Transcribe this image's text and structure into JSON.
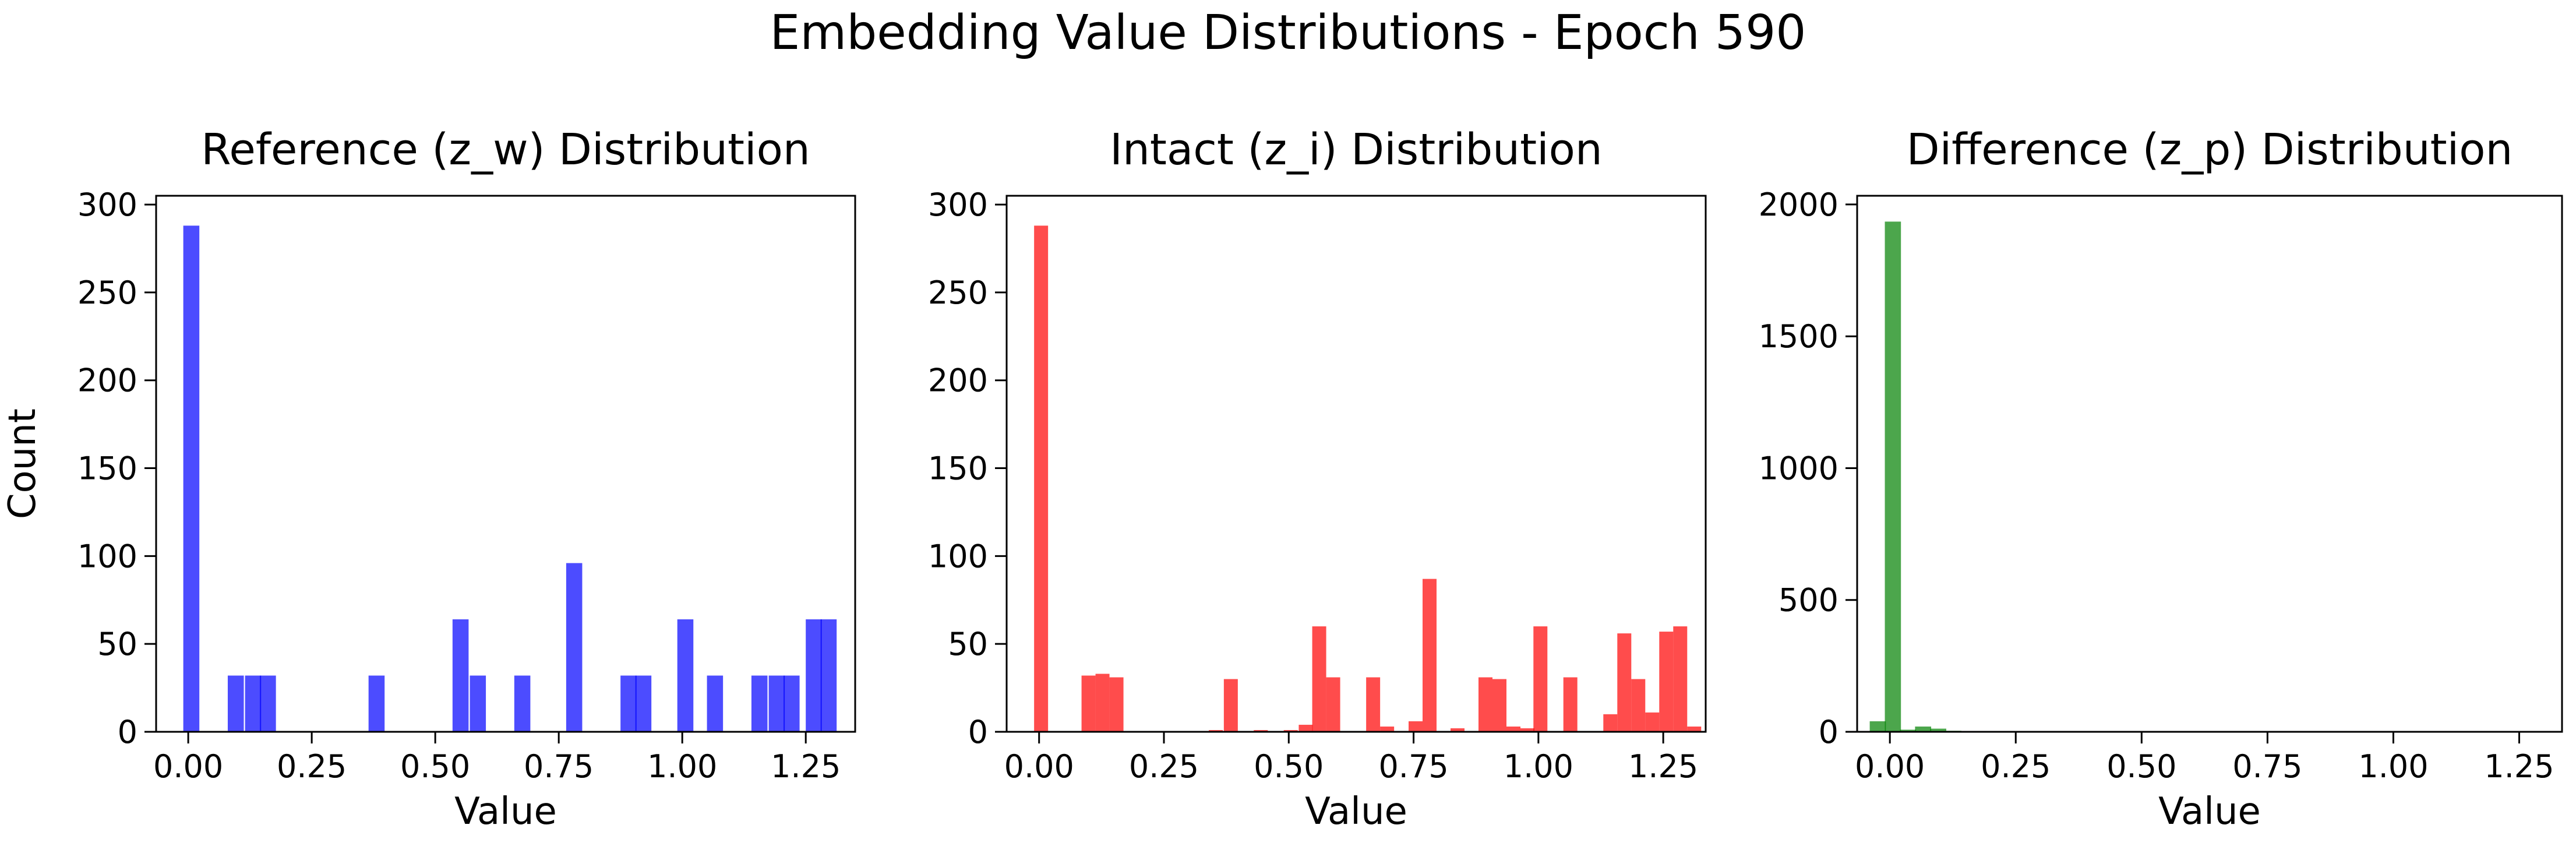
{
  "figure": {
    "suptitle": "Embedding Value Distributions - Epoch 590"
  },
  "chart_data": [
    {
      "type": "bar",
      "title": "Reference (z_w) Distribution",
      "xlabel": "Value",
      "ylabel": "Count",
      "color": "#0000ff",
      "bin_width": 0.0325,
      "xlim": [
        -0.065,
        1.35
      ],
      "ylim": [
        0,
        305
      ],
      "xticks": [
        0.0,
        0.25,
        0.5,
        0.75,
        1.0,
        1.25
      ],
      "xtick_labels": [
        "0.00",
        "0.25",
        "0.50",
        "0.75",
        "1.00",
        "1.25"
      ],
      "yticks": [
        0,
        50,
        100,
        150,
        200,
        250,
        300
      ],
      "ytick_labels": [
        "0",
        "50",
        "100",
        "150",
        "200",
        "250",
        "300"
      ],
      "bins": [
        {
          "x": -0.01,
          "count": 288
        },
        {
          "x": 0.08,
          "count": 32
        },
        {
          "x": 0.115,
          "count": 32
        },
        {
          "x": 0.145,
          "count": 32
        },
        {
          "x": 0.365,
          "count": 32
        },
        {
          "x": 0.535,
          "count": 64
        },
        {
          "x": 0.57,
          "count": 32
        },
        {
          "x": 0.66,
          "count": 32
        },
        {
          "x": 0.765,
          "count": 96
        },
        {
          "x": 0.875,
          "count": 32
        },
        {
          "x": 0.905,
          "count": 32
        },
        {
          "x": 0.99,
          "count": 64
        },
        {
          "x": 1.05,
          "count": 32
        },
        {
          "x": 1.14,
          "count": 32
        },
        {
          "x": 1.175,
          "count": 32
        },
        {
          "x": 1.205,
          "count": 32
        },
        {
          "x": 1.25,
          "count": 64
        },
        {
          "x": 1.28,
          "count": 64
        }
      ]
    },
    {
      "type": "bar",
      "title": "Intact (z_i) Distribution",
      "xlabel": "Value",
      "ylabel": "",
      "color": "#ff0000",
      "bin_width": 0.028,
      "xlim": [
        -0.065,
        1.335
      ],
      "ylim": [
        0,
        305
      ],
      "xticks": [
        0.0,
        0.25,
        0.5,
        0.75,
        1.0,
        1.25
      ],
      "xtick_labels": [
        "0.00",
        "0.25",
        "0.50",
        "0.75",
        "1.00",
        "1.25"
      ],
      "yticks": [
        0,
        50,
        100,
        150,
        200,
        250,
        300
      ],
      "ytick_labels": [
        "0",
        "50",
        "100",
        "150",
        "200",
        "250",
        "300"
      ],
      "bins": [
        {
          "x": -0.01,
          "count": 288
        },
        {
          "x": 0.085,
          "count": 32
        },
        {
          "x": 0.113,
          "count": 33
        },
        {
          "x": 0.141,
          "count": 31
        },
        {
          "x": 0.34,
          "count": 1
        },
        {
          "x": 0.37,
          "count": 30
        },
        {
          "x": 0.43,
          "count": 1
        },
        {
          "x": 0.49,
          "count": 1
        },
        {
          "x": 0.52,
          "count": 4
        },
        {
          "x": 0.547,
          "count": 60
        },
        {
          "x": 0.575,
          "count": 31
        },
        {
          "x": 0.655,
          "count": 31
        },
        {
          "x": 0.683,
          "count": 3
        },
        {
          "x": 0.74,
          "count": 6
        },
        {
          "x": 0.768,
          "count": 87
        },
        {
          "x": 0.824,
          "count": 2
        },
        {
          "x": 0.88,
          "count": 31
        },
        {
          "x": 0.908,
          "count": 30
        },
        {
          "x": 0.936,
          "count": 3
        },
        {
          "x": 0.964,
          "count": 2
        },
        {
          "x": 0.99,
          "count": 60
        },
        {
          "x": 1.05,
          "count": 31
        },
        {
          "x": 1.13,
          "count": 10
        },
        {
          "x": 1.158,
          "count": 56
        },
        {
          "x": 1.186,
          "count": 30
        },
        {
          "x": 1.214,
          "count": 11
        },
        {
          "x": 1.242,
          "count": 57
        },
        {
          "x": 1.27,
          "count": 60
        },
        {
          "x": 1.298,
          "count": 3
        }
      ]
    },
    {
      "type": "bar",
      "title": "Difference (z_p) Distribution",
      "xlabel": "Value",
      "ylabel": "",
      "color": "#008000",
      "bin_width": 0.032,
      "xlim": [
        -0.065,
        1.335
      ],
      "ylim": [
        0,
        2033
      ],
      "xticks": [
        0.0,
        0.25,
        0.5,
        0.75,
        1.0,
        1.25
      ],
      "xtick_labels": [
        "0.00",
        "0.25",
        "0.50",
        "0.75",
        "1.00",
        "1.25"
      ],
      "yticks": [
        0,
        500,
        1000,
        1500,
        2000
      ],
      "ytick_labels": [
        "0",
        "500",
        "1000",
        "1500",
        "2000"
      ],
      "bins": [
        {
          "x": -0.04,
          "count": 40
        },
        {
          "x": -0.01,
          "count": 1935
        },
        {
          "x": 0.02,
          "count": 8
        },
        {
          "x": 0.05,
          "count": 20
        },
        {
          "x": 0.08,
          "count": 12
        },
        {
          "x": 0.11,
          "count": 4
        },
        {
          "x": 0.14,
          "count": 2
        }
      ]
    }
  ]
}
